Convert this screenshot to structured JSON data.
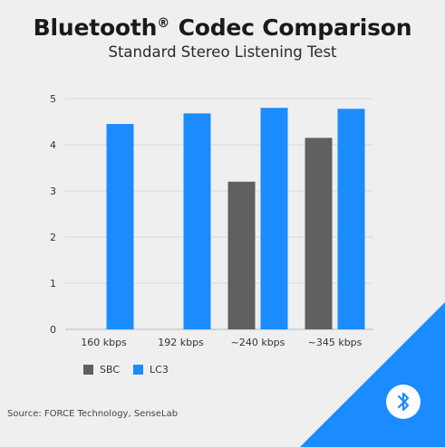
{
  "title": {
    "main": "Bluetooth",
    "mark": "®",
    "rest": " Codec Comparison",
    "subtitle": "Standard Stereo Listening Test"
  },
  "source": "Source: FORCE Technology, SenseLab",
  "brand": {
    "icon": "bluetooth-icon",
    "accent": "#1a8cff"
  },
  "chart_data": {
    "type": "bar",
    "categories": [
      "160 kbps",
      "192 kbps",
      "~240 kbps",
      "~345 kbps"
    ],
    "series": [
      {
        "name": "SBC",
        "color": "#606062",
        "values": [
          null,
          null,
          3.2,
          4.15
        ]
      },
      {
        "name": "LC3",
        "color": "#1a8cff",
        "values": [
          4.45,
          4.68,
          4.8,
          4.78
        ]
      }
    ],
    "ylim": [
      0,
      5
    ],
    "yticks": [
      0,
      1,
      2,
      3,
      4,
      5
    ],
    "grid": true,
    "legend": "bottom-left"
  }
}
